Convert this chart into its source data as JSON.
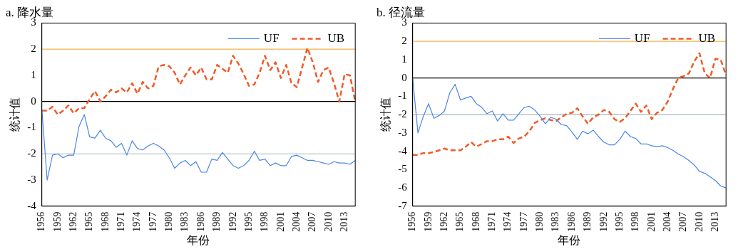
{
  "chart_data": [
    {
      "type": "line",
      "title": "a. 降水量",
      "xlabel": "年份",
      "ylabel": "统计值",
      "categories": [
        "1956",
        null,
        null,
        "1959",
        null,
        null,
        "1962",
        null,
        null,
        "1965",
        null,
        null,
        "1968",
        null,
        null,
        "1971",
        null,
        null,
        "1974",
        null,
        null,
        "1977",
        null,
        null,
        "1980",
        null,
        null,
        "1983",
        null,
        null,
        "1986",
        null,
        null,
        "1989",
        null,
        null,
        "1992",
        null,
        null,
        "1995",
        null,
        null,
        "1998",
        null,
        null,
        "2001",
        null,
        null,
        "2004",
        null,
        null,
        "2007",
        null,
        null,
        "2010",
        null,
        null,
        "2013",
        null,
        null
      ],
      "series": [
        {
          "name": "UF",
          "color": "#4a86e8",
          "line_style": "solid",
          "values": [
            -0.3,
            -3.0,
            -2.05,
            -2.0,
            -2.15,
            -2.05,
            -2.05,
            -0.95,
            -0.5,
            -1.35,
            -1.4,
            -1.1,
            -1.4,
            -1.5,
            -1.75,
            -1.6,
            -2.05,
            -1.5,
            -1.8,
            -1.85,
            -1.7,
            -1.6,
            -1.7,
            -1.85,
            -2.15,
            -2.55,
            -2.35,
            -2.25,
            -2.45,
            -2.3,
            -2.7,
            -2.7,
            -2.2,
            -2.25,
            -1.95,
            -2.2,
            -2.45,
            -2.55,
            -2.45,
            -2.25,
            -1.9,
            -2.25,
            -2.2,
            -2.45,
            -2.35,
            -2.45,
            -2.45,
            -2.1,
            -2.05,
            -2.15,
            -2.25,
            -2.25,
            -2.3,
            -2.35,
            -2.4,
            -2.3,
            -2.35,
            -2.35,
            -2.4,
            -2.25
          ]
        },
        {
          "name": "UB",
          "color": "#f05a28",
          "line_style": "dashed",
          "values": [
            -0.35,
            -0.35,
            -0.2,
            -0.5,
            -0.35,
            -0.15,
            -0.45,
            -0.25,
            -0.25,
            0.1,
            0.4,
            0.0,
            0.2,
            0.45,
            0.35,
            0.5,
            0.35,
            0.7,
            0.3,
            0.75,
            0.5,
            0.6,
            1.35,
            1.4,
            1.35,
            1.1,
            0.65,
            1.0,
            1.3,
            1.0,
            1.3,
            0.85,
            0.85,
            1.4,
            1.25,
            1.1,
            1.75,
            1.45,
            1.05,
            0.6,
            0.65,
            1.1,
            1.75,
            1.2,
            1.5,
            0.9,
            1.4,
            0.7,
            0.55,
            1.3,
            2.05,
            1.5,
            0.75,
            1.2,
            1.3,
            0.7,
            0.0,
            1.05,
            1.0,
            0.0
          ]
        }
      ],
      "ylim": [
        -4,
        3
      ],
      "yticks": [
        -4,
        -3,
        -2,
        -1,
        0,
        1,
        2,
        3
      ],
      "ref_lines": [
        {
          "axis": "y",
          "value": 2,
          "color": "#f7b24a"
        },
        {
          "axis": "y",
          "value": 0,
          "color": "#000000"
        },
        {
          "axis": "y",
          "value": -2,
          "color": "#a9b8bc"
        }
      ],
      "legend": "top right",
      "marker": "none",
      "grid": false
    },
    {
      "type": "line",
      "title": "b. 径流量",
      "xlabel": "年份",
      "ylabel": "统计值",
      "categories": [
        "1956",
        null,
        null,
        "1959",
        null,
        null,
        "1962",
        null,
        null,
        "1965",
        null,
        null,
        "1968",
        null,
        null,
        "1971",
        null,
        null,
        "1974",
        null,
        null,
        "1977",
        null,
        null,
        "1980",
        null,
        null,
        "1983",
        null,
        null,
        "1986",
        null,
        null,
        "1989",
        null,
        null,
        "1992",
        null,
        null,
        "1995",
        null,
        null,
        "1998",
        null,
        null,
        "2001",
        null,
        null,
        "2004",
        null,
        null,
        "2007",
        null,
        null,
        "2010",
        null,
        null,
        "2013",
        null,
        null
      ],
      "series": [
        {
          "name": "UF",
          "color": "#4a86e8",
          "line_style": "solid",
          "values": [
            0.0,
            -3.0,
            -2.1,
            -1.4,
            -2.2,
            -2.05,
            -1.8,
            -0.8,
            -0.35,
            -1.2,
            -1.1,
            -1.0,
            -1.4,
            -1.6,
            -1.95,
            -1.8,
            -2.35,
            -1.95,
            -2.3,
            -2.3,
            -1.95,
            -1.6,
            -1.55,
            -1.75,
            -2.1,
            -2.5,
            -2.15,
            -2.25,
            -2.55,
            -2.6,
            -2.95,
            -3.35,
            -2.9,
            -3.05,
            -2.85,
            -3.2,
            -3.5,
            -3.65,
            -3.65,
            -3.35,
            -2.9,
            -3.2,
            -3.3,
            -3.6,
            -3.6,
            -3.7,
            -3.75,
            -3.7,
            -3.8,
            -3.95,
            -4.15,
            -4.3,
            -4.5,
            -4.75,
            -5.1,
            -5.2,
            -5.4,
            -5.6,
            -5.9,
            -6.0
          ]
        },
        {
          "name": "UB",
          "color": "#f05a28",
          "line_style": "dashed",
          "values": [
            -4.2,
            -4.2,
            -4.1,
            -4.1,
            -4.05,
            -3.95,
            -3.85,
            -3.95,
            -3.95,
            -3.95,
            -3.75,
            -3.5,
            -3.75,
            -3.6,
            -3.45,
            -3.45,
            -3.35,
            -3.35,
            -3.2,
            -3.55,
            -3.3,
            -3.2,
            -2.9,
            -2.45,
            -2.3,
            -2.2,
            -2.3,
            -2.35,
            -2.15,
            -1.95,
            -1.9,
            -1.65,
            -2.1,
            -2.5,
            -2.15,
            -2.0,
            -1.75,
            -1.85,
            -2.25,
            -2.4,
            -2.2,
            -1.8,
            -1.4,
            -1.85,
            -1.5,
            -2.25,
            -1.9,
            -1.75,
            -1.3,
            -0.6,
            0.0,
            0.1,
            0.25,
            0.9,
            1.35,
            0.25,
            0.0,
            1.05,
            1.0,
            0.15
          ]
        }
      ],
      "ylim": [
        -7,
        3
      ],
      "yticks": [
        -7,
        -6,
        -5,
        -4,
        -3,
        -2,
        -1,
        0,
        1,
        2,
        3
      ],
      "ref_lines": [
        {
          "axis": "y",
          "value": 2,
          "color": "#f7b24a"
        },
        {
          "axis": "y",
          "value": 0,
          "color": "#000000"
        },
        {
          "axis": "y",
          "value": -2,
          "color": "#a9b8bc"
        }
      ],
      "legend": "top right",
      "marker": "none",
      "grid": false
    }
  ]
}
